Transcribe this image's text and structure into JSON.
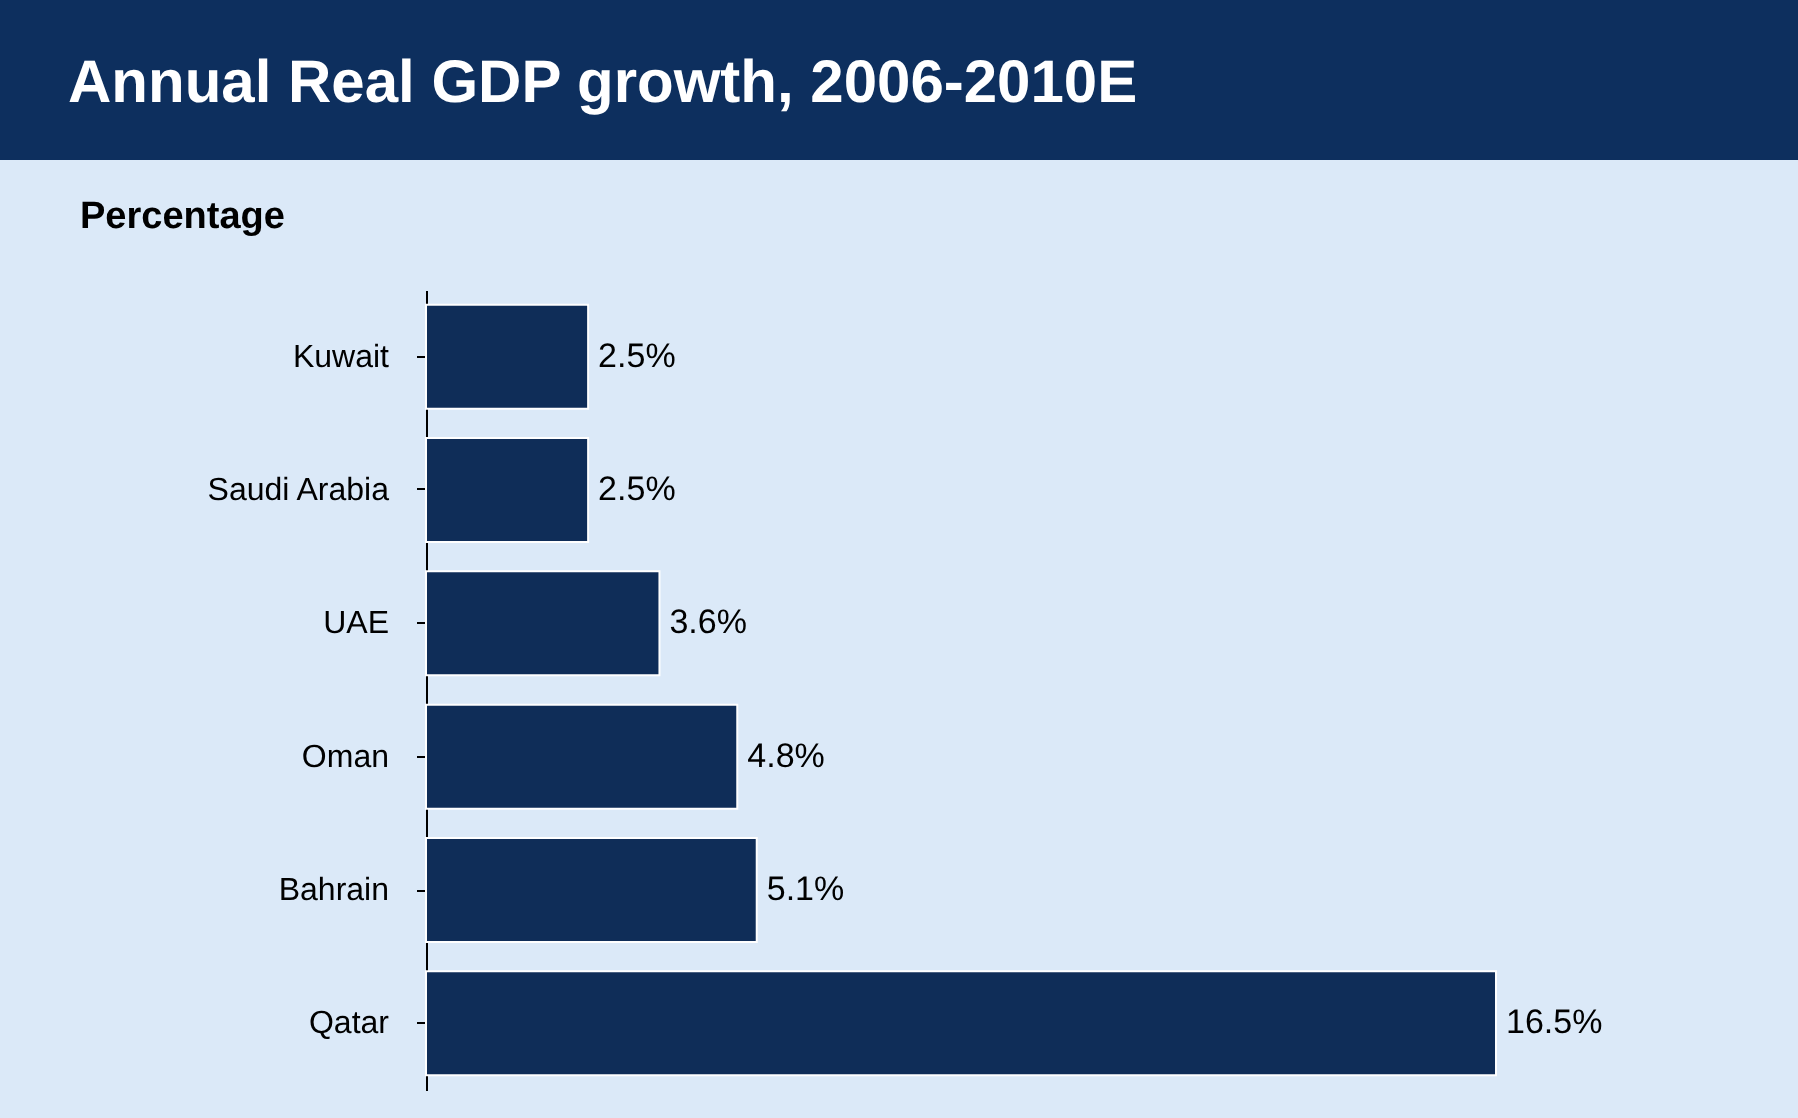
{
  "chart_data": {
    "type": "bar",
    "orientation": "horizontal",
    "title": "Annual Real GDP growth, 2006-2010E",
    "subtitle": "Percentage",
    "categories": [
      "Kuwait",
      "Saudi Arabia",
      "UAE",
      "Oman",
      "Bahrain",
      "Qatar"
    ],
    "values": [
      2.5,
      2.5,
      3.6,
      4.8,
      5.1,
      16.5
    ],
    "value_labels": [
      "2.5%",
      "2.5%",
      "3.6%",
      "4.8%",
      "5.1%",
      "16.5%"
    ],
    "color": "#0f2d58",
    "grid": false
  }
}
